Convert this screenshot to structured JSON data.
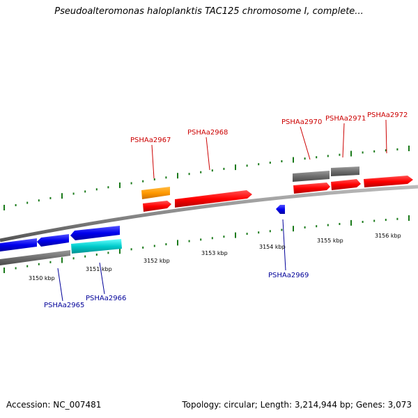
{
  "title": "Pseudoalteromonas haloplanktis TAC125 chromosome I, complete...",
  "footer": {
    "accession": "Accession: NC_007481",
    "summary": "Topology: circular; Length: 3,214,944 bp; Genes: 3,073"
  },
  "scale_labels": [
    "3150 kbp",
    "3151 kbp",
    "3152 kbp",
    "3153 kbp",
    "3154 kbp",
    "3155 kbp",
    "3156 kbp"
  ],
  "gene_labels_forward": [
    "PSHAa2967",
    "PSHAa2968",
    "PSHAa2970",
    "PSHAa2971",
    "PSHAa2972"
  ],
  "gene_labels_reverse": [
    "PSHAa2965",
    "PSHAa2966",
    "PSHAa2969"
  ],
  "colors": {
    "forward_gene": "#ff0000",
    "reverse_gene": "#0000ee",
    "forward_label": "#cc0000",
    "reverse_label": "#000099",
    "backbone": "#8a8a8a",
    "tick": "#1a7a1a",
    "rna": "#ff9900",
    "pseudo": "#00cccc",
    "region": "#777777"
  }
}
